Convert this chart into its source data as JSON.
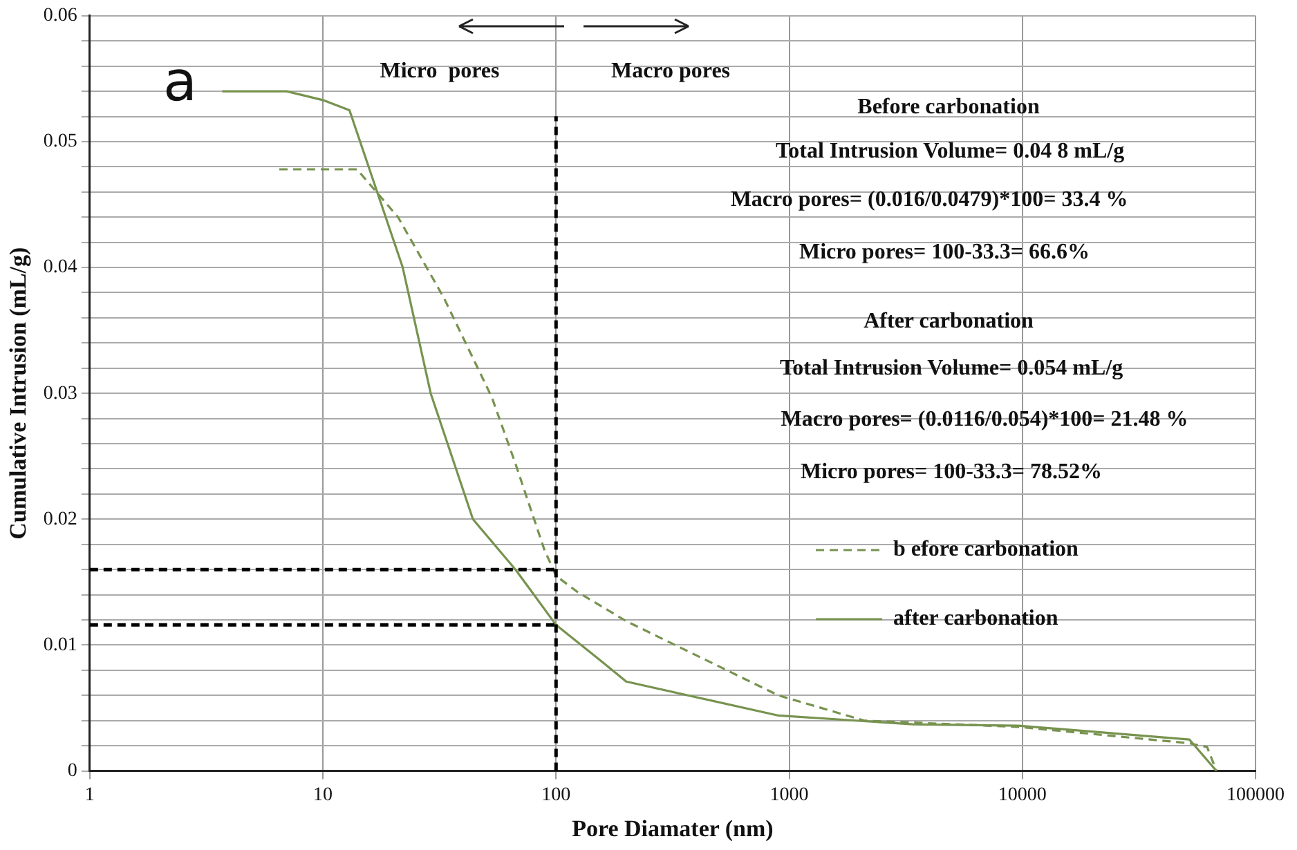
{
  "chart_data": {
    "type": "line",
    "xlabel": "Pore Diamater (nm)",
    "ylabel": "Cumulative Intrusion (mL/g)",
    "log": "x",
    "xlim": [
      1,
      100000
    ],
    "xticks": [
      1,
      10,
      100,
      1000,
      10000,
      100000
    ],
    "ylim": [
      0,
      0.06
    ],
    "yticks": [
      0,
      {
        "value": 0.002,
        "label": null
      },
      {
        "value": 0.004,
        "label": null
      },
      {
        "value": 0.006,
        "label": null
      },
      {
        "value": 0.008,
        "label": null
      },
      0.01,
      {
        "value": 0.012,
        "label": null
      },
      {
        "value": 0.014,
        "label": null
      },
      {
        "value": 0.016,
        "label": null
      },
      {
        "value": 0.018,
        "label": null
      },
      0.02,
      {
        "value": 0.022,
        "label": null
      },
      {
        "value": 0.024,
        "label": null
      },
      {
        "value": 0.026,
        "label": null
      },
      {
        "value": 0.028,
        "label": null
      },
      0.03,
      {
        "value": 0.032,
        "label": null
      },
      {
        "value": 0.034,
        "label": null
      },
      {
        "value": 0.036,
        "label": null
      },
      {
        "value": 0.038,
        "label": null
      },
      0.04,
      {
        "value": 0.042,
        "label": null
      },
      {
        "value": 0.044,
        "label": null
      },
      {
        "value": 0.046,
        "label": null
      },
      {
        "value": 0.048,
        "label": null
      },
      0.05,
      {
        "value": 0.052,
        "label": null
      },
      {
        "value": 0.054,
        "label": null
      },
      {
        "value": 0.056,
        "label": null
      },
      {
        "value": 0.058,
        "label": null
      },
      0.06
    ],
    "grid": true,
    "legend": "right",
    "marker": "none",
    "series": [
      {
        "name": "b efore carbonation",
        "color": "#77934f",
        "line_style": "dashed",
        "x": [
          6.5,
          14,
          21,
          33,
          53,
          67,
          89,
          100,
          124,
          200,
          900,
          2100,
          9600,
          52000,
          62000,
          68000
        ],
        "values": [
          0.0478,
          0.0478,
          0.044,
          0.0376,
          0.0297,
          0.0244,
          0.0176,
          0.0155,
          0.0142,
          0.0119,
          0.006,
          0.004,
          0.0035,
          0.0022,
          0.0019,
          0
        ]
      },
      {
        "name": "after carbonation",
        "color": "#77934f",
        "line_style": "solid",
        "x": [
          3.7,
          7,
          10,
          13,
          22,
          29,
          44,
          67,
          100,
          157,
          200,
          900,
          3400,
          9600,
          52000,
          68000
        ],
        "values": [
          0.054,
          0.054,
          0.0533,
          0.0525,
          0.04,
          0.03,
          0.02,
          0.016,
          0.0116,
          0.0087,
          0.0071,
          0.0044,
          0.0037,
          0.0036,
          0.0025,
          0
        ]
      }
    ],
    "ref_lines": [
      {
        "axis": "x",
        "value": 100,
        "label": null,
        "color": "#000000",
        "line_style": "dashed"
      },
      {
        "axis": "y",
        "value": 0.016,
        "label": null,
        "color": "#000000",
        "line_style": "dashed"
      },
      {
        "axis": "y",
        "value": 0.0116,
        "label": null,
        "color": "#000000",
        "line_style": "dashed"
      }
    ],
    "annotations": [
      "a",
      "Micro  pores",
      "Macro pores",
      "Before carbonation",
      "Total Intrusion Volume= 0.04 8 mL/g",
      "Macro pores= (0.016/0.0479)*100= 33.4 %",
      "Micro pores= 100-33.3= 66.6%",
      "After carbonation",
      "Total Intrusion Volume= 0.054 mL/g",
      "Macro pores= (0.0116/0.054)*100= 21.48 %",
      "Micro pores= 100-33.3= 78.52%"
    ]
  }
}
